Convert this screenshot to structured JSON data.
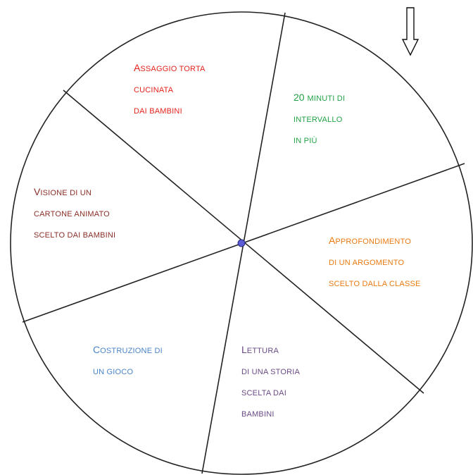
{
  "wheel": {
    "segments": [
      {
        "lines": [
          [
            "A",
            "SSAGGIO TORTA"
          ],
          [
            "",
            "CUCINATA"
          ],
          [
            "",
            "DAI BAMBINI"
          ]
        ],
        "color": "#e3231c"
      },
      {
        "lines": [
          [
            "20 ",
            "MINUTI DI"
          ],
          [
            "",
            "INTERVALLO"
          ],
          [
            "",
            "IN PIÙ"
          ]
        ],
        "color": "#22a346"
      },
      {
        "lines": [
          [
            "A",
            "PPROFONDIMENTO"
          ],
          [
            "",
            "DI UN ARGOMENTO"
          ],
          [
            "",
            "SCELTO DALLA CLASSE"
          ]
        ],
        "color": "#e97a12"
      },
      {
        "lines": [
          [
            "L",
            "ETTURA"
          ],
          [
            "",
            "DI UNA STORIA"
          ],
          [
            "",
            "SCELTA DAI"
          ],
          [
            "",
            "BAMBINI"
          ]
        ],
        "color": "#6a4b86"
      },
      {
        "lines": [
          [
            "C",
            "OSTRUZIONE DI"
          ],
          [
            "",
            "UN GIOCO"
          ]
        ],
        "color": "#4a84c8"
      },
      {
        "lines": [
          [
            "V",
            "ISIONE DI UN"
          ],
          [
            "",
            "CARTONE ANIMATO"
          ],
          [
            "",
            "SCELTO DAI BAMBINI"
          ]
        ],
        "color": "#8b2e28"
      }
    ],
    "hub_color": "#5b5bd6",
    "pointer_icon": "down-arrow-outline-icon"
  }
}
